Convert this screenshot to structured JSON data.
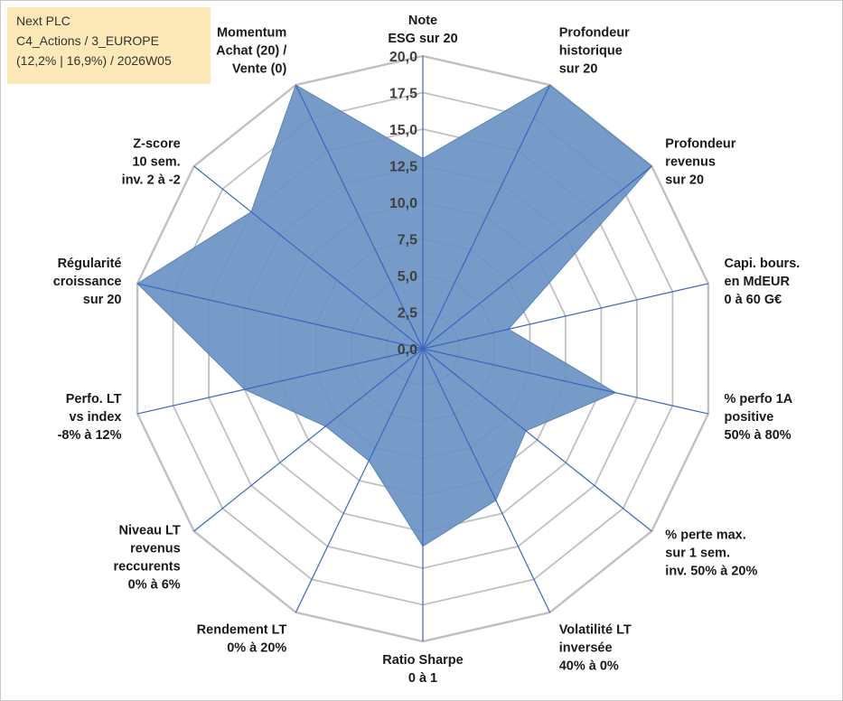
{
  "info_box": {
    "line1": "Next PLC",
    "line2": "C4_Actions / 3_EUROPE",
    "line3": "(12,2% | 16,9%) / 2026W05"
  },
  "colors": {
    "fill": "#6a93c4",
    "grid": "#c0c0c0",
    "spokes": "#3a66c0",
    "info_background": "#fde9b8",
    "text": "#1a1a1a"
  },
  "chart_data": {
    "type": "radar",
    "rlim": [
      0,
      20
    ],
    "radial_ticks": [
      "0,0",
      "2,5",
      "5,0",
      "7,5",
      "10,0",
      "12,5",
      "15,0",
      "17,5",
      "20,0"
    ],
    "grid": true,
    "categories": [
      [
        "Note",
        "ESG sur 20"
      ],
      [
        "Profondeur",
        "historique",
        "sur 20"
      ],
      [
        "Profondeur",
        "revenus",
        "sur 20"
      ],
      [
        "Capi. bours.",
        "en MdEUR",
        "0 à 60 G€"
      ],
      [
        "% perfo 1A",
        "positive",
        "50% à 80%"
      ],
      [
        "% perte max.",
        "sur 1 sem.",
        "inv. 50% à 20%"
      ],
      [
        "Volatilité LT",
        "inversée",
        "40% à 0%"
      ],
      [
        "Ratio Sharpe",
        "0 à 1"
      ],
      [
        "Rendement LT",
        "0% à 20%"
      ],
      [
        "Niveau LT",
        "revenus",
        "reccurents",
        "0% à 6%"
      ],
      [
        "Perfo. LT",
        "vs index",
        "-8% à 12%"
      ],
      [
        "Régularité",
        "croissance",
        "sur 20"
      ],
      [
        "Z-score",
        "10 sem.",
        "inv. 2 à -2"
      ],
      [
        "Momentum",
        "Achat (20) /",
        "Vente (0)"
      ]
    ],
    "values": [
      13,
      20,
      20,
      6,
      13.5,
      9,
      11.5,
      13.5,
      8.5,
      8.5,
      12.5,
      20,
      15,
      20
    ]
  }
}
